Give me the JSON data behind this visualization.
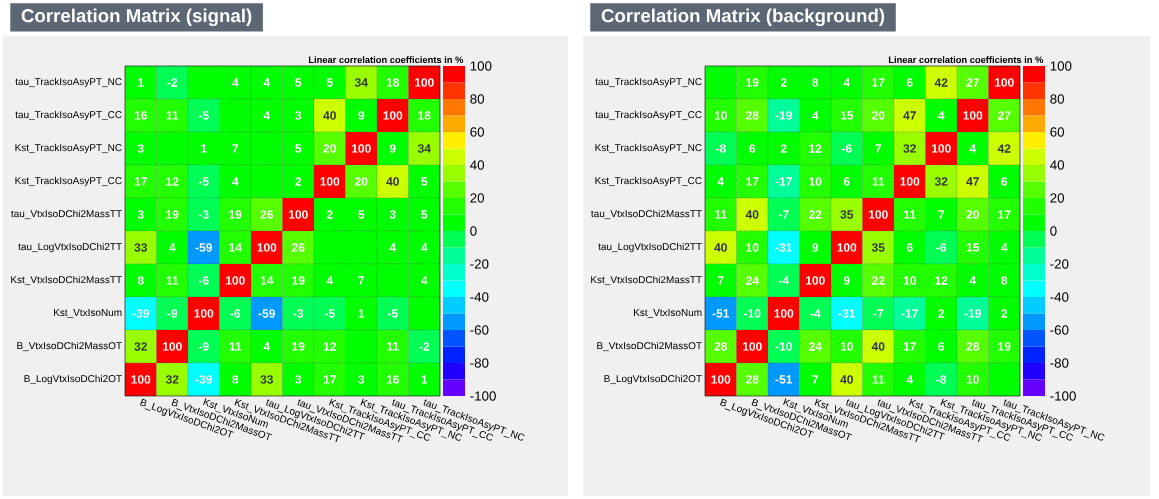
{
  "chart_data": [
    {
      "type": "heatmap",
      "title": "Correlation Matrix (signal)",
      "clabel": "Linear correlation coefficients in %",
      "categories": [
        "B_LogVtxIsoDChi2OT",
        "B_VtxIsoDChi2MassOT",
        "Kst_VtxIsoNum",
        "Kst_VtxIsoDChi2MassTT",
        "tau_LogVtxIsoDChi2TT",
        "tau_VtxIsoDChi2MassTT",
        "Kst_TrackIsoAsyPT_CC",
        "Kst_TrackIsoAsyPT_NC",
        "tau_TrackIsoAsyPT_CC",
        "tau_TrackIsoAsyPT_NC"
      ],
      "y_categories": [
        "tau_TrackIsoAsyPT_NC",
        "tau_TrackIsoAsyPT_CC",
        "Kst_TrackIsoAsyPT_NC",
        "Kst_TrackIsoAsyPT_CC",
        "tau_VtxIsoDChi2MassTT",
        "tau_LogVtxIsoDChi2TT",
        "Kst_VtxIsoDChi2MassTT",
        "Kst_VtxIsoNum",
        "B_VtxIsoDChi2MassOT",
        "B_LogVtxIsoDChi2OT"
      ],
      "cells": [
        [
          1,
          -2,
          0,
          4,
          4,
          5,
          5,
          34,
          18,
          100
        ],
        [
          16,
          11,
          -5,
          0,
          4,
          3,
          40,
          9,
          100,
          18
        ],
        [
          3,
          0,
          1,
          7,
          0,
          5,
          20,
          100,
          9,
          34
        ],
        [
          17,
          12,
          -5,
          4,
          0,
          2,
          100,
          20,
          40,
          5
        ],
        [
          3,
          19,
          -3,
          19,
          26,
          100,
          2,
          5,
          3,
          5
        ],
        [
          33,
          4,
          -59,
          14,
          100,
          26,
          0,
          0,
          4,
          4
        ],
        [
          8,
          11,
          -6,
          100,
          14,
          19,
          4,
          7,
          0,
          4
        ],
        [
          -39,
          -9,
          100,
          -6,
          -59,
          -3,
          -5,
          1,
          -5,
          0
        ],
        [
          32,
          100,
          -9,
          11,
          4,
          19,
          12,
          0,
          11,
          -2
        ],
        [
          100,
          32,
          -39,
          8,
          33,
          3,
          17,
          3,
          16,
          1
        ]
      ],
      "cell_labels": [
        [
          "1",
          "-2",
          null,
          "4",
          "4",
          "5",
          "5",
          "34",
          "18",
          "100"
        ],
        [
          "16",
          "11",
          "-5",
          null,
          "4",
          "3",
          "40",
          "9",
          "100",
          "18"
        ],
        [
          "3",
          null,
          "1",
          "7",
          null,
          "5",
          "20",
          "100",
          "9",
          "34"
        ],
        [
          "17",
          "12",
          "-5",
          "4",
          null,
          "2",
          "100",
          "20",
          "40",
          "5"
        ],
        [
          "3",
          "19",
          "-3",
          "19",
          "26",
          "100",
          "2",
          "5",
          "3",
          "5"
        ],
        [
          "33",
          "4",
          "-59",
          "14",
          "100",
          "26",
          null,
          null,
          "4",
          "4"
        ],
        [
          "8",
          "11",
          "-6",
          "100",
          "14",
          "19",
          "4",
          "7",
          null,
          "4"
        ],
        [
          "-39",
          "-9",
          "100",
          "-6",
          "-59",
          "-3",
          "-5",
          "1",
          "-5",
          null
        ],
        [
          "32",
          "100",
          "-9",
          "11",
          "4",
          "19",
          "12",
          null,
          "11",
          "-2"
        ],
        [
          "100",
          "32",
          "-39",
          "8",
          "33",
          "3",
          "17",
          "3",
          "16",
          "1"
        ]
      ],
      "clim": [
        -100,
        100
      ],
      "cticks": [
        -100,
        -80,
        -60,
        -40,
        -20,
        0,
        20,
        40,
        60,
        80,
        100
      ]
    },
    {
      "type": "heatmap",
      "title": "Correlation Matrix (background)",
      "clabel": "Linear correlation coefficients in %",
      "categories": [
        "B_LogVtxIsoDChi2OT",
        "B_VtxIsoDChi2MassOT",
        "Kst_VtxIsoNum",
        "Kst_VtxIsoDChi2MassTT",
        "tau_LogVtxIsoDChi2TT",
        "tau_VtxIsoDChi2MassTT",
        "Kst_TrackIsoAsyPT_CC",
        "Kst_TrackIsoAsyPT_NC",
        "tau_TrackIsoAsyPT_CC",
        "tau_TrackIsoAsyPT_NC"
      ],
      "y_categories": [
        "tau_TrackIsoAsyPT_NC",
        "tau_TrackIsoAsyPT_CC",
        "Kst_TrackIsoAsyPT_NC",
        "Kst_TrackIsoAsyPT_CC",
        "tau_VtxIsoDChi2MassTT",
        "tau_LogVtxIsoDChi2TT",
        "Kst_VtxIsoDChi2MassTT",
        "Kst_VtxIsoNum",
        "B_VtxIsoDChi2MassOT",
        "B_LogVtxIsoDChi2OT"
      ],
      "cells": [
        [
          0,
          19,
          2,
          8,
          4,
          17,
          6,
          42,
          27,
          100
        ],
        [
          10,
          28,
          -19,
          4,
          15,
          20,
          47,
          4,
          100,
          27
        ],
        [
          -8,
          6,
          2,
          12,
          -6,
          7,
          32,
          100,
          4,
          42
        ],
        [
          4,
          17,
          -17,
          10,
          6,
          11,
          100,
          32,
          47,
          6
        ],
        [
          11,
          40,
          -7,
          22,
          35,
          100,
          11,
          7,
          20,
          17
        ],
        [
          40,
          10,
          -31,
          9,
          100,
          35,
          6,
          -6,
          15,
          4
        ],
        [
          7,
          24,
          -4,
          100,
          9,
          22,
          10,
          12,
          4,
          8
        ],
        [
          -51,
          -10,
          100,
          -4,
          -31,
          -7,
          -17,
          2,
          -19,
          2
        ],
        [
          28,
          100,
          -10,
          24,
          10,
          40,
          17,
          6,
          28,
          19
        ],
        [
          100,
          28,
          -51,
          7,
          40,
          11,
          4,
          -8,
          10,
          0
        ]
      ],
      "cell_labels": [
        [
          null,
          "19",
          "2",
          "8",
          "4",
          "17",
          "6",
          "42",
          "27",
          "100"
        ],
        [
          "10",
          "28",
          "-19",
          "4",
          "15",
          "20",
          "47",
          "4",
          "100",
          "27"
        ],
        [
          "-8",
          "6",
          "2",
          "12",
          "-6",
          "7",
          "32",
          "100",
          "4",
          "42"
        ],
        [
          "4",
          "17",
          "-17",
          "10",
          "6",
          "11",
          "100",
          "32",
          "47",
          "6"
        ],
        [
          "11",
          "40",
          "-7",
          "22",
          "35",
          "100",
          "11",
          "7",
          "20",
          "17"
        ],
        [
          "40",
          "10",
          "-31",
          "9",
          "100",
          "35",
          "6",
          "-6",
          "15",
          "4"
        ],
        [
          "7",
          "24",
          "-4",
          "100",
          "9",
          "22",
          "10",
          "12",
          "4",
          "8"
        ],
        [
          "-51",
          "-10",
          "100",
          "-4",
          "-31",
          "-7",
          "-17",
          "2",
          "-19",
          "2"
        ],
        [
          "28",
          "100",
          "-10",
          "24",
          "10",
          "40",
          "17",
          "6",
          "28",
          "19"
        ],
        [
          "100",
          "28",
          "-51",
          "7",
          "40",
          "11",
          "4",
          "-8",
          "10",
          null
        ]
      ],
      "clim": [
        -100,
        100
      ],
      "cticks": [
        -100,
        -80,
        -60,
        -40,
        -20,
        0,
        20,
        40,
        60,
        80,
        100
      ]
    }
  ]
}
